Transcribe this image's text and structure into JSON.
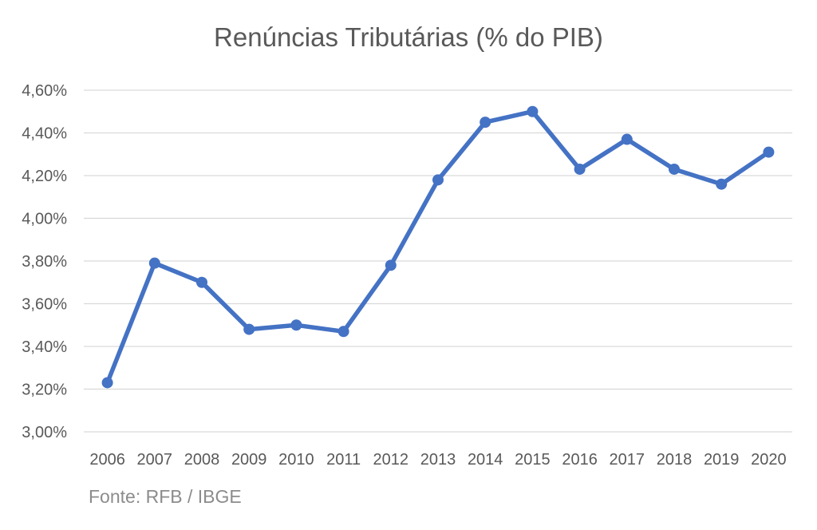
{
  "chart_data": {
    "type": "line",
    "title": "Renúncias Tributárias (% do PIB)",
    "xlabel": "",
    "ylabel": "",
    "categories": [
      "2006",
      "2007",
      "2008",
      "2009",
      "2010",
      "2011",
      "2012",
      "2013",
      "2014",
      "2015",
      "2016",
      "2017",
      "2018",
      "2019",
      "2020"
    ],
    "series": [
      {
        "values": [
          3.23,
          3.79,
          3.7,
          3.48,
          3.5,
          3.47,
          3.78,
          4.18,
          4.45,
          4.5,
          4.23,
          4.37,
          4.23,
          4.16,
          4.31
        ],
        "color": "#4472c4"
      }
    ],
    "ylim": [
      3.0,
      4.6
    ],
    "yticks": [
      {
        "value": 3.0,
        "label": "3,00%"
      },
      {
        "value": 3.2,
        "label": "3,20%"
      },
      {
        "value": 3.4,
        "label": "3,40%"
      },
      {
        "value": 3.6,
        "label": "3,60%"
      },
      {
        "value": 3.8,
        "label": "3,80%"
      },
      {
        "value": 4.0,
        "label": "4,00%"
      },
      {
        "value": 4.2,
        "label": "4,20%"
      },
      {
        "value": 4.4,
        "label": "4,40%"
      },
      {
        "value": 4.6,
        "label": "4,60%"
      }
    ],
    "grid": true,
    "legend": "none",
    "source": "Fonte: RFB / IBGE"
  }
}
